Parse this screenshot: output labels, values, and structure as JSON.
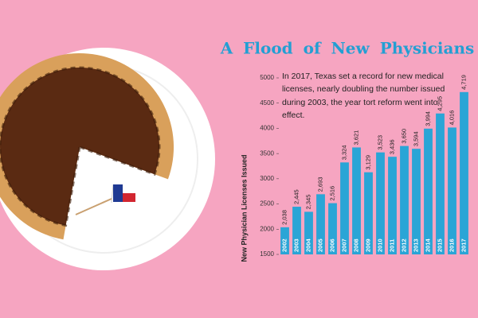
{
  "chart_data": {
    "type": "bar",
    "title": "A Flood of New Physicians",
    "annotation": "In 2017, Texas set a record for new medical licenses, nearly doubling the number issued during 2003, the year tort reform went into effect.",
    "y_label": "New Physician Licenses Issued",
    "categories": [
      "2002",
      "2003",
      "2004",
      "2005",
      "2006",
      "2007",
      "2008",
      "2009",
      "2010",
      "2011",
      "2012",
      "2013",
      "2014",
      "2015",
      "2016",
      "2017"
    ],
    "values": [
      2038,
      2445,
      2345,
      2693,
      2516,
      3324,
      3621,
      3129,
      3523,
      3436,
      3650,
      3594,
      3994,
      4295,
      4016,
      4719
    ],
    "value_labels": [
      "2,038",
      "2,445",
      "2,345",
      "2,693",
      "2,516",
      "3,324",
      "3,621",
      "3,129",
      "3,523",
      "3,436",
      "3,650",
      "3,594",
      "3,994",
      "4,295",
      "4,016",
      "4,719"
    ],
    "color": "#2aa5d6",
    "ylim": [
      1500,
      5000
    ],
    "yticks": [
      1500,
      2000,
      2500,
      3000,
      3500,
      4000,
      4500,
      5000
    ],
    "grid": false
  }
}
